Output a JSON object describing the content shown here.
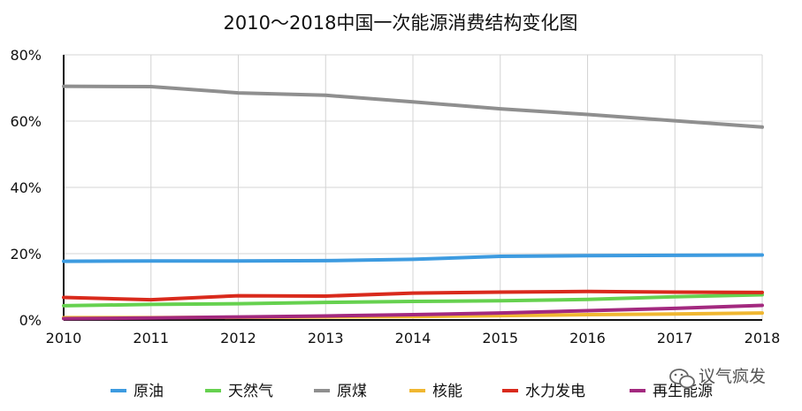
{
  "chart_data": {
    "type": "line",
    "title": "2010～2018中国一次能源消费结构变化图",
    "xlabel": "",
    "ylabel": "",
    "x": [
      "2010",
      "2011",
      "2012",
      "2013",
      "2014",
      "2015",
      "2016",
      "2017",
      "2018"
    ],
    "ylim": [
      0,
      80
    ],
    "yticks": [
      "0%",
      "20%",
      "40%",
      "60%",
      "80%"
    ],
    "grid": true,
    "legend_position": "bottom",
    "series": [
      {
        "name": "原油",
        "color": "#3d9be0",
        "values": [
          17.7,
          17.8,
          17.8,
          17.9,
          18.3,
          19.2,
          19.4,
          19.5,
          19.6
        ]
      },
      {
        "name": "天然气",
        "color": "#66d14f",
        "values": [
          4.3,
          4.7,
          4.9,
          5.3,
          5.6,
          5.8,
          6.2,
          7.0,
          7.6
        ]
      },
      {
        "name": "原煤",
        "color": "#8f8f8f",
        "values": [
          70.5,
          70.4,
          68.5,
          67.8,
          65.8,
          63.7,
          62.0,
          60.1,
          58.2
        ]
      },
      {
        "name": "核能",
        "color": "#f0b731",
        "values": [
          0.7,
          0.7,
          0.8,
          0.9,
          1.0,
          1.3,
          1.6,
          1.8,
          2.1
        ]
      },
      {
        "name": "水力发电",
        "color": "#d92a1c",
        "values": [
          6.8,
          6.1,
          7.3,
          7.2,
          8.1,
          8.4,
          8.6,
          8.4,
          8.3
        ]
      },
      {
        "name": "再生能源",
        "color": "#a3297f",
        "values": [
          0.4,
          0.6,
          0.9,
          1.2,
          1.6,
          2.1,
          2.8,
          3.5,
          4.4
        ]
      }
    ]
  },
  "watermark": {
    "text": "议气疯发"
  }
}
